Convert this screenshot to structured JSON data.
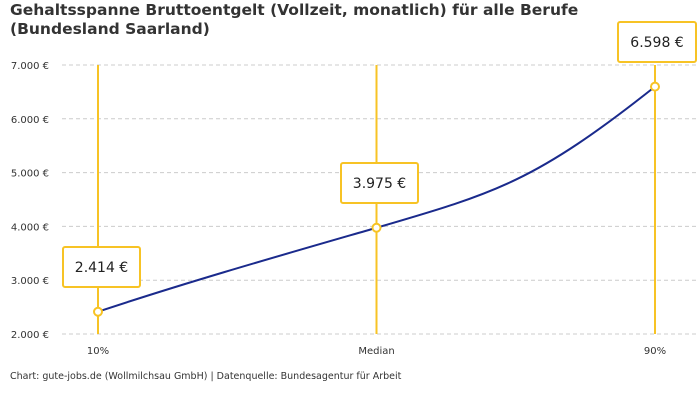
{
  "chart_data": {
    "type": "line",
    "title": "Gehaltsspanne Bruttoentgelt (Vollzeit, monatlich) für alle Berufe (Bundesland Saarland)",
    "categories": [
      "10%",
      "Median",
      "90%"
    ],
    "values": [
      2414,
      3975,
      6598
    ],
    "data_labels": [
      "2.414 €",
      "3.975 €",
      "6.598 €"
    ],
    "yticks": [
      2000,
      3000,
      4000,
      5000,
      6000,
      7000
    ],
    "ytick_labels": [
      "2.000 €",
      "3.000 €",
      "4.000 €",
      "5.000 €",
      "6.000 €",
      "7.000 €"
    ],
    "ylim": [
      2000,
      7000
    ],
    "grid": "horizontal dashed",
    "colors": {
      "line": "#1a2a8c",
      "marker": "#f7c325",
      "grid": "#cccccc"
    }
  },
  "footer": "Chart: gute-jobs.de (Wollmilchsau GmbH) | Datenquelle: Bundesagentur für Arbeit"
}
